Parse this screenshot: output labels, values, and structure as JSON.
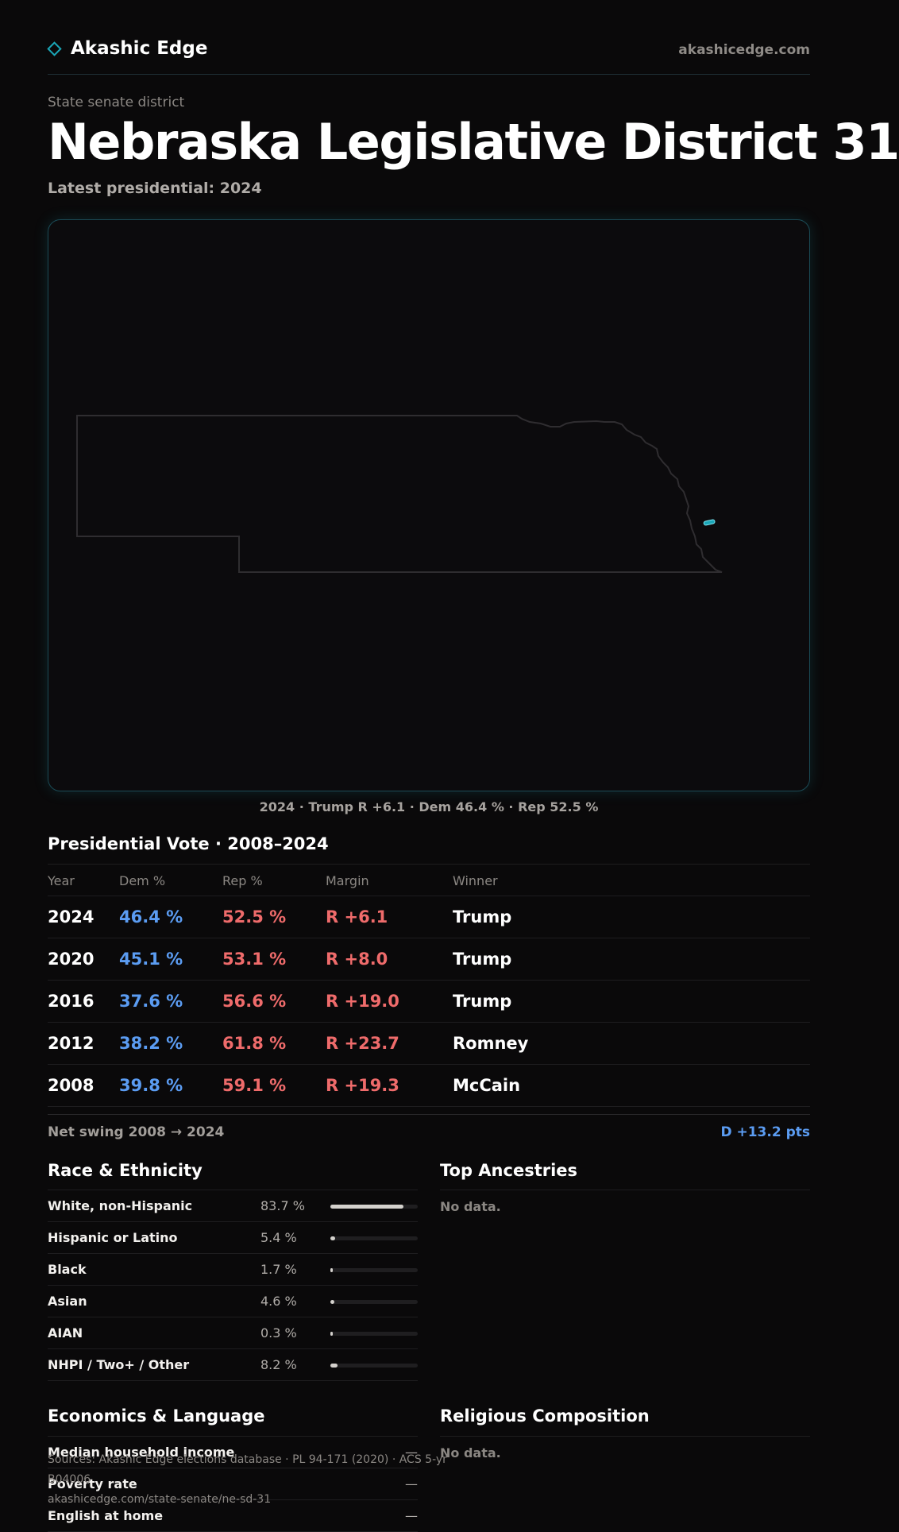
{
  "header": {
    "brand": "Akashic Edge",
    "site": "akashicedge.com"
  },
  "eyebrow": "State senate district",
  "title": "Nebraska Legislative District 31",
  "subtitle": "Latest presidential: 2024",
  "map_caption": "2024 · Trump R +6.1 · Dem 46.4 % · Rep 52.5 %",
  "presidential": {
    "title": "Presidential Vote · 2008–2024",
    "columns": [
      "Year",
      "Dem %",
      "Rep %",
      "Margin",
      "Winner"
    ],
    "rows": [
      {
        "year": "2024",
        "dem": "46.4 %",
        "rep": "52.5 %",
        "margin": "R +6.1",
        "winner": "Trump"
      },
      {
        "year": "2020",
        "dem": "45.1 %",
        "rep": "53.1 %",
        "margin": "R +8.0",
        "winner": "Trump"
      },
      {
        "year": "2016",
        "dem": "37.6 %",
        "rep": "56.6 %",
        "margin": "R +19.0",
        "winner": "Trump"
      },
      {
        "year": "2012",
        "dem": "38.2 %",
        "rep": "61.8 %",
        "margin": "R +23.7",
        "winner": "Romney"
      },
      {
        "year": "2008",
        "dem": "39.8 %",
        "rep": "59.1 %",
        "margin": "R +19.3",
        "winner": "McCain"
      }
    ],
    "swing_label": "Net swing 2008 → 2024",
    "swing_value": "D +13.2 pts"
  },
  "race": {
    "title": "Race & Ethnicity",
    "rows": [
      {
        "label": "White, non-Hispanic",
        "pct": "83.7 %",
        "share": 0.837
      },
      {
        "label": "Hispanic or Latino",
        "pct": "5.4 %",
        "share": 0.054
      },
      {
        "label": "Black",
        "pct": "1.7 %",
        "share": 0.017
      },
      {
        "label": "Asian",
        "pct": "4.6 %",
        "share": 0.046
      },
      {
        "label": "AIAN",
        "pct": "0.3 %",
        "share": 0.003
      },
      {
        "label": "NHPI / Two+ / Other",
        "pct": "8.2 %",
        "share": 0.082
      }
    ]
  },
  "ancestries": {
    "title": "Top Ancestries",
    "empty": "No data."
  },
  "economics": {
    "title": "Economics & Language",
    "rows": [
      {
        "label": "Median household income",
        "value": "—"
      },
      {
        "label": "Poverty rate",
        "value": "—"
      },
      {
        "label": "English at home",
        "value": "—"
      }
    ]
  },
  "religion": {
    "title": "Religious Composition",
    "empty": "No data."
  },
  "footer": {
    "sources": "Sources: Akashic Edge elections database · PL 94-171 (2020) · ACS 5-yr B04006",
    "url": "akashicedge.com/state-senate/ne-sd-31"
  },
  "colors": {
    "accent": "#1aa6b7",
    "dem": "#5b9cf2",
    "rep": "#ef6b6b",
    "background": "#0a090a"
  }
}
